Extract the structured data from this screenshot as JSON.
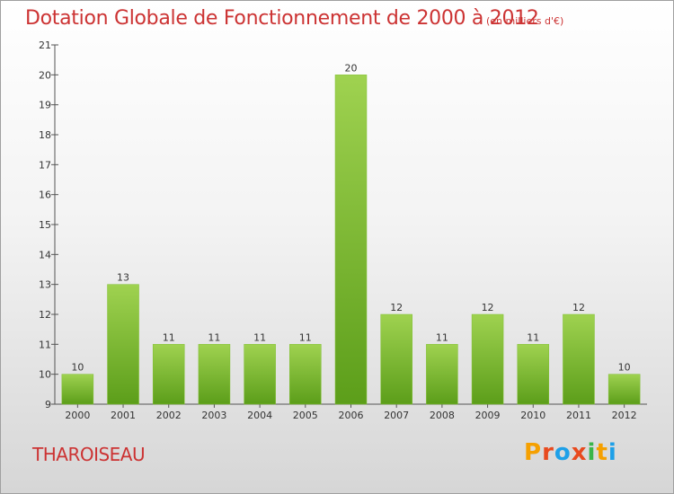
{
  "title": "Dotation Globale de Fonctionnement de 2000 à 2012",
  "unit": "(en milliers d'€)",
  "commune": "THAROISEAU",
  "logo": {
    "letters": [
      "P",
      "r",
      "o",
      "x",
      "i",
      "t",
      "i"
    ],
    "colors": [
      "#f5a000",
      "#e84a1e",
      "#1ea0e8",
      "#e84a1e",
      "#3ab54a",
      "#f5a000",
      "#1ea0e8"
    ]
  },
  "colors": {
    "title": "#cc3333",
    "bar_top": "#9fd250",
    "bar_bottom": "#5c9e1a",
    "axis": "#555555"
  },
  "chart_data": {
    "type": "bar",
    "title": "Dotation Globale de Fonctionnement de 2000 à 2012",
    "categories": [
      "2000",
      "2001",
      "2002",
      "2003",
      "2004",
      "2005",
      "2006",
      "2007",
      "2008",
      "2009",
      "2010",
      "2011",
      "2012"
    ],
    "values": [
      10,
      13,
      11,
      11,
      11,
      11,
      20,
      12,
      11,
      12,
      11,
      12,
      10
    ],
    "ylim": [
      9,
      21
    ],
    "yticks": [
      9,
      10,
      11,
      12,
      13,
      14,
      15,
      16,
      17,
      18,
      19,
      20,
      21
    ],
    "xlabel": "",
    "ylabel": "",
    "grid": false,
    "data_labels": true
  }
}
